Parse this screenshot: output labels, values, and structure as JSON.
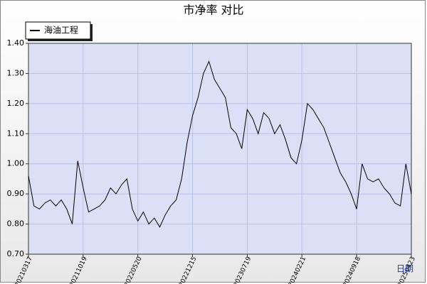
{
  "chart_data": {
    "type": "line",
    "title": "市净率  对比",
    "x_label": "日期",
    "categories": [
      "20210317",
      null,
      null,
      null,
      null,
      null,
      null,
      null,
      null,
      null,
      "20211019",
      null,
      null,
      null,
      null,
      null,
      null,
      null,
      null,
      null,
      "20220520",
      null,
      null,
      null,
      null,
      null,
      null,
      null,
      null,
      null,
      "20221215",
      null,
      null,
      null,
      null,
      null,
      null,
      null,
      null,
      null,
      "20230719",
      null,
      null,
      null,
      null,
      null,
      null,
      null,
      null,
      null,
      "20240221",
      null,
      null,
      null,
      null,
      null,
      null,
      null,
      null,
      null,
      "20240918",
      null,
      null,
      null,
      null,
      null,
      null,
      null,
      null,
      null,
      "20250423"
    ],
    "series": [
      {
        "name": "海油工程",
        "color": "#000000",
        "values": [
          0.96,
          0.86,
          0.85,
          0.87,
          0.88,
          0.86,
          0.88,
          0.85,
          0.8,
          1.01,
          0.92,
          0.84,
          0.85,
          0.86,
          0.88,
          0.92,
          0.9,
          0.93,
          0.95,
          0.85,
          0.81,
          0.84,
          0.8,
          0.82,
          0.79,
          0.83,
          0.86,
          0.88,
          0.95,
          1.07,
          1.16,
          1.22,
          1.3,
          1.34,
          1.28,
          1.25,
          1.22,
          1.12,
          1.1,
          1.05,
          1.18,
          1.15,
          1.1,
          1.17,
          1.15,
          1.1,
          1.13,
          1.08,
          1.02,
          1.0,
          1.08,
          1.2,
          1.18,
          1.15,
          1.12,
          1.07,
          1.02,
          0.97,
          0.94,
          0.9,
          0.85,
          1.0,
          0.95,
          0.94,
          0.95,
          0.92,
          0.9,
          0.87,
          0.86,
          1.0,
          0.9
        ]
      }
    ],
    "ylim": [
      0.7,
      1.4
    ],
    "yticks": [
      {
        "value": 0.7,
        "label": "0.70"
      },
      {
        "value": 0.8,
        "label": "0.80"
      },
      {
        "value": 0.9,
        "label": "0.90"
      },
      {
        "value": 1.0,
        "label": "1.00"
      },
      {
        "value": 1.1,
        "label": "1.10"
      },
      {
        "value": 1.2,
        "label": "1.20"
      },
      {
        "value": 1.3,
        "label": "1.30"
      },
      {
        "value": 1.4,
        "label": "1.40"
      }
    ],
    "grid": true
  }
}
